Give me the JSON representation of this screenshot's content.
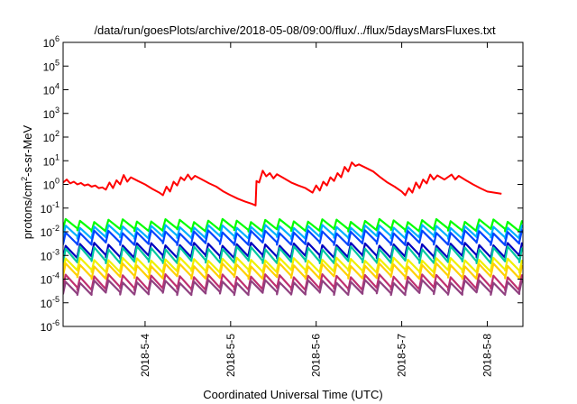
{
  "chart_data": {
    "type": "line",
    "title": "/data/run/goesPlots/archive/2018-05-08/09:00/flux/../flux/5daysMarsFluxes.txt",
    "xlabel": "Coordinated Universal Time (UTC)",
    "ylabel": "protons/cm2-s-sr-MeV",
    "ylabel_base": "protons/cm",
    "ylabel_sup": "2",
    "ylabel_rest": "-s-sr-MeV",
    "y_scale": "log",
    "ylim": [
      1e-06,
      1000000.0
    ],
    "xlim": [
      "2018-05-03 01:00",
      "2018-05-08 10:00"
    ],
    "x_ticks": [
      "2018-5-4",
      "2018-5-5",
      "2018-5-6",
      "2018-5-7",
      "2018-5-8"
    ],
    "y_ticks": [
      {
        "base": "10",
        "exp": "-6"
      },
      {
        "base": "10",
        "exp": "-5"
      },
      {
        "base": "10",
        "exp": "-4"
      },
      {
        "base": "10",
        "exp": "-3"
      },
      {
        "base": "10",
        "exp": "-2"
      },
      {
        "base": "10",
        "exp": "-1"
      },
      {
        "base": "10",
        "exp": "0"
      },
      {
        "base": "10",
        "exp": "1"
      },
      {
        "base": "10",
        "exp": "2"
      },
      {
        "base": "10",
        "exp": "3"
      },
      {
        "base": "10",
        "exp": "4"
      },
      {
        "base": "10",
        "exp": "5"
      },
      {
        "base": "10",
        "exp": "6"
      }
    ],
    "grid": false,
    "legend": "none",
    "red_series": {
      "color": "#ff0000",
      "points": [
        [
          "2018-05-03 01:00",
          1.2
        ],
        [
          "2018-05-03 02:00",
          1.6
        ],
        [
          "2018-05-03 03:00",
          1.1
        ],
        [
          "2018-05-03 04:00",
          1.3
        ],
        [
          "2018-05-03 05:00",
          1.0
        ],
        [
          "2018-05-03 06:00",
          1.15
        ],
        [
          "2018-05-03 07:00",
          0.9
        ],
        [
          "2018-05-03 08:00",
          1.0
        ],
        [
          "2018-05-03 09:00",
          0.8
        ],
        [
          "2018-05-03 10:00",
          0.9
        ],
        [
          "2018-05-03 11:00",
          0.7
        ],
        [
          "2018-05-03 12:00",
          0.75
        ],
        [
          "2018-05-03 13:00",
          0.6
        ],
        [
          "2018-05-03 14:00",
          1.2
        ],
        [
          "2018-05-03 15:00",
          0.7
        ],
        [
          "2018-05-03 16:00",
          1.5
        ],
        [
          "2018-05-03 17:00",
          1.0
        ],
        [
          "2018-05-03 18:00",
          2.5
        ],
        [
          "2018-05-03 19:00",
          1.3
        ],
        [
          "2018-05-03 20:00",
          2.0
        ],
        [
          "2018-05-03 22:00",
          1.4
        ],
        [
          "2018-05-04 00:00",
          1.0
        ],
        [
          "2018-05-04 02:00",
          0.65
        ],
        [
          "2018-05-04 04:00",
          0.45
        ],
        [
          "2018-05-04 05:00",
          0.35
        ],
        [
          "2018-05-04 06:00",
          0.8
        ],
        [
          "2018-05-04 07:00",
          0.5
        ],
        [
          "2018-05-04 08:00",
          1.3
        ],
        [
          "2018-05-04 09:00",
          0.9
        ],
        [
          "2018-05-04 10:00",
          2.0
        ],
        [
          "2018-05-04 11:00",
          1.5
        ],
        [
          "2018-05-04 12:00",
          2.6
        ],
        [
          "2018-05-04 13:00",
          1.6
        ],
        [
          "2018-05-04 14:00",
          2.3
        ],
        [
          "2018-05-04 16:00",
          1.6
        ],
        [
          "2018-05-04 18:00",
          1.1
        ],
        [
          "2018-05-04 20:00",
          0.8
        ],
        [
          "2018-05-04 22:00",
          0.5
        ],
        [
          "2018-05-05 00:00",
          0.35
        ],
        [
          "2018-05-05 02:00",
          0.25
        ],
        [
          "2018-05-05 04:00",
          0.19
        ],
        [
          "2018-05-05 06:00",
          0.15
        ],
        [
          "2018-05-05 07:00",
          0.13
        ],
        [
          "2018-05-05 07:15",
          1.4
        ],
        [
          "2018-05-05 08:00",
          1.2
        ],
        [
          "2018-05-05 09:00",
          3.8
        ],
        [
          "2018-05-05 10:00",
          2.2
        ],
        [
          "2018-05-05 11:00",
          3.0
        ],
        [
          "2018-05-05 12:00",
          1.8
        ],
        [
          "2018-05-05 13:00",
          2.7
        ],
        [
          "2018-05-05 15:00",
          1.8
        ],
        [
          "2018-05-05 17:00",
          1.2
        ],
        [
          "2018-05-05 19:00",
          0.9
        ],
        [
          "2018-05-05 21:00",
          0.7
        ],
        [
          "2018-05-05 23:00",
          0.45
        ],
        [
          "2018-05-06 00:00",
          0.9
        ],
        [
          "2018-05-06 01:00",
          0.55
        ],
        [
          "2018-05-06 02:00",
          1.3
        ],
        [
          "2018-05-06 03:00",
          0.9
        ],
        [
          "2018-05-06 04:00",
          2.0
        ],
        [
          "2018-05-06 05:00",
          1.4
        ],
        [
          "2018-05-06 06:00",
          3.0
        ],
        [
          "2018-05-06 07:00",
          2.0
        ],
        [
          "2018-05-06 08:00",
          5.5
        ],
        [
          "2018-05-06 09:00",
          3.5
        ],
        [
          "2018-05-06 10:00",
          8.5
        ],
        [
          "2018-05-06 11:00",
          6.0
        ],
        [
          "2018-05-06 12:00",
          7.0
        ],
        [
          "2018-05-06 14:00",
          5.0
        ],
        [
          "2018-05-06 16:00",
          3.5
        ],
        [
          "2018-05-06 18:00",
          2.0
        ],
        [
          "2018-05-06 20:00",
          1.2
        ],
        [
          "2018-05-06 22:00",
          0.8
        ],
        [
          "2018-05-07 00:00",
          0.5
        ],
        [
          "2018-05-07 01:00",
          0.35
        ],
        [
          "2018-05-07 02:00",
          0.7
        ],
        [
          "2018-05-07 03:00",
          0.45
        ],
        [
          "2018-05-07 04:00",
          1.2
        ],
        [
          "2018-05-07 05:00",
          0.7
        ],
        [
          "2018-05-07 06:00",
          1.6
        ],
        [
          "2018-05-07 07:00",
          1.1
        ],
        [
          "2018-05-07 08:00",
          2.6
        ],
        [
          "2018-05-07 09:00",
          1.6
        ],
        [
          "2018-05-07 10:00",
          2.4
        ],
        [
          "2018-05-07 12:00",
          1.6
        ],
        [
          "2018-05-07 14:00",
          2.6
        ],
        [
          "2018-05-07 15:00",
          1.6
        ],
        [
          "2018-05-07 16:00",
          2.3
        ],
        [
          "2018-05-07 18:00",
          1.5
        ],
        [
          "2018-05-07 20:00",
          1.0
        ],
        [
          "2018-05-07 22:00",
          0.7
        ],
        [
          "2018-05-08 00:00",
          0.5
        ],
        [
          "2018-05-08 02:00",
          0.45
        ],
        [
          "2018-05-08 04:00",
          0.4
        ]
      ]
    },
    "sawtooth_series": [
      {
        "color": "#00ff00",
        "peak": 0.03,
        "trough": 0.012
      },
      {
        "color": "#00b0ff",
        "peak": 0.017,
        "trough": 0.006
      },
      {
        "color": "#0044ff",
        "peak": 0.01,
        "trough": 0.0032
      },
      {
        "color": "#0000c0",
        "peak": 0.003,
        "trough": 0.0009
      },
      {
        "color": "#00c8a0",
        "peak": 0.0021,
        "trough": 0.00055
      },
      {
        "color": "#f0f000",
        "peak": 0.0007,
        "trough": 0.00022
      },
      {
        "color": "#ffd000",
        "peak": 0.0004,
        "trough": 0.00012
      },
      {
        "color": "#c03070",
        "peak": 0.00014,
        "trough": 4e-05
      },
      {
        "color": "#904080",
        "peak": 8e-05,
        "trough": 2.5e-05
      }
    ],
    "sawtooth_cycle_hours": 4
  }
}
